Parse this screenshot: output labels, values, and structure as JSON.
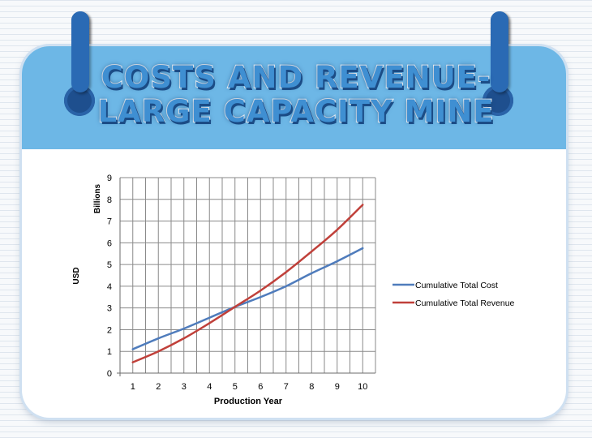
{
  "header": {
    "title_line1": "Costs and Revenue-",
    "title_line2": "Large Capacity Mine"
  },
  "colors": {
    "header_band": "#6db7e6",
    "cost_line": "#4f7cbc",
    "revenue_line": "#c0403a"
  },
  "chart_data": {
    "type": "line",
    "title": "",
    "xlabel": "Production Year",
    "ylabel": "USD",
    "yunit": "Billions",
    "x": [
      1,
      2,
      3,
      4,
      5,
      6,
      7,
      8,
      9,
      10
    ],
    "xlim": [
      0.5,
      10.5
    ],
    "ylim": [
      0,
      9
    ],
    "yticks": [
      0,
      1,
      2,
      3,
      4,
      5,
      6,
      7,
      8,
      9
    ],
    "grid": true,
    "legend": "right",
    "series": [
      {
        "name": "Cumulative Total Cost",
        "color": "#4f7cbc",
        "values": [
          1.1,
          1.6,
          2.05,
          2.55,
          3.05,
          3.5,
          4.0,
          4.6,
          5.15,
          5.75
        ]
      },
      {
        "name": "Cumulative Total Revenue",
        "color": "#c0403a",
        "values": [
          0.5,
          1.0,
          1.6,
          2.3,
          3.05,
          3.8,
          4.65,
          5.6,
          6.6,
          7.75
        ]
      }
    ]
  }
}
